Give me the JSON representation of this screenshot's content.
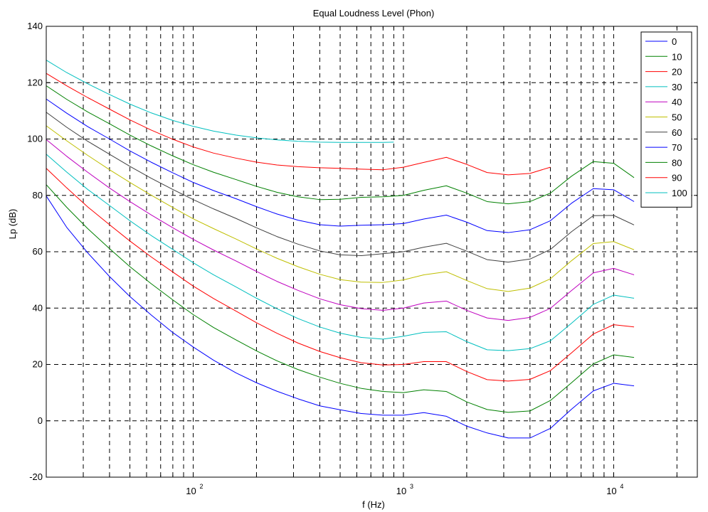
{
  "chart_data": {
    "type": "line",
    "title": "Equal Loudness Level (Phon)",
    "xlabel": "f (Hz)",
    "ylabel": "Lp (dB)",
    "xscale": "log",
    "xlim": [
      20,
      25000
    ],
    "ylim": [
      -20,
      140
    ],
    "grid": true,
    "legend_position": "top-right",
    "y_ticks": [
      -20,
      0,
      20,
      40,
      60,
      80,
      100,
      120,
      140
    ],
    "y_tick_labels": [
      "-20",
      "0",
      "20",
      "40",
      "60",
      "80",
      "100",
      "120",
      "140"
    ],
    "x_ticks": [
      100,
      1000,
      10000
    ],
    "x_tick_labels": [
      {
        "base": "10",
        "exp": "2"
      },
      {
        "base": "10",
        "exp": "3"
      },
      {
        "base": "10",
        "exp": "4"
      }
    ],
    "series": [
      {
        "name": "0",
        "color": "#0000ff",
        "x": [
          20,
          25,
          31.5,
          40,
          50,
          63,
          80,
          100,
          125,
          160,
          200,
          250,
          315,
          400,
          500,
          630,
          800,
          1000,
          1250,
          1600,
          2000,
          2500,
          3150,
          4000,
          5000,
          6300,
          8000,
          10000,
          12500
        ],
        "y": [
          79.8,
          68.7,
          59.6,
          51.2,
          44.1,
          37.6,
          31.3,
          26.2,
          21.5,
          17.0,
          13.5,
          10.5,
          7.8,
          5.3,
          3.9,
          2.6,
          2.0,
          2.0,
          2.9,
          1.6,
          -1.9,
          -4.3,
          -6.1,
          -6.1,
          -2.7,
          4.1,
          10.6,
          13.3,
          12.4
        ]
      },
      {
        "name": "10",
        "color": "#008000",
        "x": [
          20,
          25,
          31.5,
          40,
          50,
          63,
          80,
          100,
          125,
          160,
          200,
          250,
          315,
          400,
          500,
          630,
          800,
          1000,
          1250,
          1600,
          2000,
          2500,
          3150,
          4000,
          5000,
          6300,
          8000,
          10000,
          12500
        ],
        "y": [
          83.8,
          75.8,
          68.2,
          61.1,
          54.7,
          48.7,
          42.9,
          37.7,
          33.1,
          28.7,
          24.8,
          21.3,
          18.2,
          15.5,
          13.3,
          11.5,
          10.4,
          10.0,
          11.0,
          10.4,
          6.7,
          4.0,
          3.0,
          3.5,
          7.2,
          13.5,
          20.2,
          23.4,
          22.5
        ]
      },
      {
        "name": "20",
        "color": "#ff0000",
        "x": [
          20,
          25,
          31.5,
          40,
          50,
          63,
          80,
          100,
          125,
          160,
          200,
          250,
          315,
          400,
          500,
          630,
          800,
          1000,
          1250,
          1600,
          2000,
          2500,
          3150,
          4000,
          5000,
          6300,
          8000,
          10000,
          12500
        ],
        "y": [
          89.6,
          82.7,
          75.9,
          69.6,
          63.8,
          58.2,
          52.8,
          47.8,
          43.4,
          38.9,
          34.8,
          31.1,
          27.6,
          24.6,
          22.4,
          20.6,
          19.8,
          20.0,
          21.0,
          21.0,
          17.5,
          14.6,
          14.1,
          14.7,
          17.8,
          24.1,
          30.8,
          34.1,
          33.3
        ]
      },
      {
        "name": "30",
        "color": "#00bfbf",
        "x": [
          20,
          25,
          31.5,
          40,
          50,
          63,
          80,
          100,
          125,
          160,
          200,
          250,
          315,
          400,
          500,
          630,
          800,
          1000,
          1250,
          1600,
          2000,
          2500,
          3150,
          4000,
          5000,
          6300,
          8000,
          10000,
          12500
        ],
        "y": [
          94.6,
          88.3,
          82.1,
          76.4,
          71.0,
          65.8,
          60.8,
          56.1,
          51.8,
          47.5,
          43.5,
          39.8,
          36.3,
          33.3,
          31.1,
          29.6,
          29.0,
          30.0,
          31.4,
          31.6,
          28.1,
          25.2,
          24.9,
          25.6,
          28.4,
          34.6,
          41.3,
          44.6,
          43.5
        ]
      },
      {
        "name": "40",
        "color": "#bf00bf",
        "x": [
          20,
          25,
          31.5,
          40,
          50,
          63,
          80,
          100,
          125,
          160,
          200,
          250,
          315,
          400,
          500,
          630,
          800,
          1000,
          1250,
          1600,
          2000,
          2500,
          3150,
          4000,
          5000,
          6300,
          8000,
          10000,
          12500
        ],
        "y": [
          99.8,
          93.9,
          88.2,
          82.6,
          77.8,
          73.1,
          68.5,
          64.4,
          60.6,
          56.7,
          53.0,
          49.5,
          46.3,
          43.3,
          41.2,
          39.8,
          39.2,
          40.0,
          41.8,
          42.5,
          39.2,
          36.5,
          35.6,
          36.7,
          39.9,
          46.2,
          52.5,
          54.1,
          51.8
        ]
      },
      {
        "name": "50",
        "color": "#bfbf00",
        "x": [
          20,
          25,
          31.5,
          40,
          50,
          63,
          80,
          100,
          125,
          160,
          200,
          250,
          315,
          400,
          500,
          630,
          800,
          1000,
          1250,
          1600,
          2000,
          2500,
          3150,
          4000,
          5000,
          6300,
          8000,
          10000,
          12500
        ],
        "y": [
          104.7,
          99.4,
          94.2,
          89.1,
          84.6,
          80.1,
          75.7,
          71.7,
          68.2,
          64.5,
          61.0,
          57.7,
          54.7,
          52.0,
          50.1,
          49.2,
          49.1,
          50.0,
          51.8,
          52.9,
          49.8,
          46.9,
          45.9,
          47.1,
          50.4,
          56.8,
          62.9,
          63.6,
          60.7
        ]
      },
      {
        "name": "60",
        "color": "#404040",
        "x": [
          20,
          25,
          31.5,
          40,
          50,
          63,
          80,
          100,
          125,
          160,
          200,
          250,
          315,
          400,
          500,
          630,
          800,
          1000,
          1250,
          1600,
          2000,
          2500,
          3150,
          4000,
          5000,
          6300,
          8000,
          10000,
          12500
        ],
        "y": [
          109.5,
          104.2,
          99.2,
          94.6,
          90.3,
          86.1,
          82.1,
          78.5,
          75.2,
          71.8,
          68.5,
          65.4,
          62.7,
          60.3,
          58.9,
          58.6,
          59.3,
          60.0,
          61.6,
          63.0,
          60.2,
          57.2,
          56.3,
          57.4,
          60.8,
          67.1,
          72.8,
          72.9,
          69.5
        ]
      },
      {
        "name": "70",
        "color": "#0000ff",
        "x": [
          20,
          25,
          31.5,
          40,
          50,
          63,
          80,
          100,
          125,
          160,
          200,
          250,
          315,
          400,
          500,
          630,
          800,
          1000,
          1250,
          1600,
          2000,
          2500,
          3150,
          4000,
          5000,
          6300,
          8000,
          10000,
          12500
        ],
        "y": [
          114.2,
          109.2,
          104.4,
          100.0,
          95.8,
          91.8,
          88.0,
          84.6,
          81.7,
          78.8,
          76.0,
          73.4,
          71.2,
          69.6,
          69.1,
          69.4,
          69.6,
          70.0,
          71.6,
          73.0,
          70.5,
          67.5,
          66.8,
          67.8,
          71.0,
          77.2,
          82.4,
          82.0,
          77.8
        ]
      },
      {
        "name": "80",
        "color": "#008000",
        "x": [
          20,
          25,
          31.5,
          40,
          50,
          63,
          80,
          100,
          125,
          160,
          200,
          250,
          315,
          400,
          500,
          630,
          800,
          1000,
          1250,
          1600,
          2000,
          2500,
          3150,
          4000,
          5000,
          6300,
          8000,
          10000,
          12500
        ],
        "y": [
          118.9,
          114.1,
          109.6,
          105.4,
          101.4,
          97.6,
          94.0,
          90.9,
          88.2,
          85.6,
          83.2,
          81.1,
          79.5,
          78.5,
          78.6,
          79.3,
          79.5,
          80.0,
          81.8,
          83.4,
          80.8,
          77.8,
          77.0,
          77.8,
          80.8,
          86.8,
          92.0,
          91.4,
          86.3
        ]
      },
      {
        "name": "90",
        "color": "#ff0000",
        "x": [
          20,
          25,
          31.5,
          40,
          50,
          63,
          80,
          100,
          125,
          160,
          200,
          250,
          315,
          400,
          500,
          630,
          800,
          1000,
          1250,
          1600,
          2000,
          2500,
          3150,
          4000,
          5000
        ],
        "y": [
          123.3,
          118.9,
          114.7,
          110.6,
          106.8,
          103.2,
          99.9,
          97.2,
          95.0,
          93.2,
          91.8,
          90.8,
          90.2,
          89.8,
          89.6,
          89.3,
          89.1,
          90.0,
          91.7,
          93.5,
          91.0,
          88.1,
          87.3,
          87.8,
          90.0
        ]
      },
      {
        "name": "100",
        "color": "#00bfbf",
        "x": [
          20,
          25,
          31.5,
          40,
          50,
          63,
          80,
          100,
          125,
          160,
          200,
          250,
          315,
          400,
          500,
          630,
          800,
          900
        ],
        "y": [
          128.0,
          123.6,
          119.6,
          115.8,
          112.4,
          109.3,
          106.6,
          104.5,
          102.8,
          101.4,
          100.4,
          99.7,
          99.2,
          98.9,
          98.8,
          98.8,
          98.8,
          98.9
        ]
      }
    ]
  }
}
